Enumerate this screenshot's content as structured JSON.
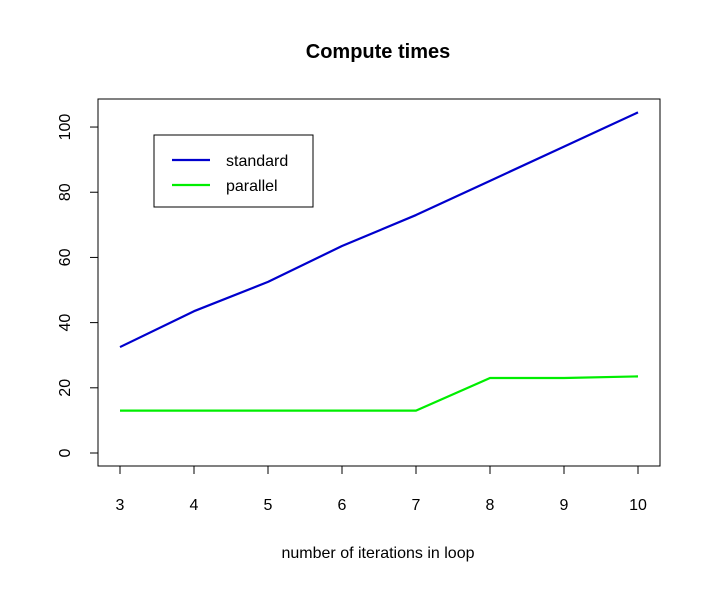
{
  "chart_data": {
    "type": "line",
    "title": "Compute times",
    "xlabel": "number of iterations in loop",
    "ylabel": "",
    "x": [
      3,
      4,
      5,
      6,
      7,
      8,
      9,
      10
    ],
    "xlim": [
      3,
      10
    ],
    "ylim": [
      0,
      104
    ],
    "xticks": [
      "3",
      "4",
      "5",
      "6",
      "7",
      "8",
      "9",
      "10"
    ],
    "yticks": [
      "0",
      "20",
      "40",
      "60",
      "80",
      "100"
    ],
    "grid": false,
    "legend_position": "top-left",
    "series": [
      {
        "name": "standard",
        "color": "#0000cd",
        "values": [
          32.5,
          43.5,
          52.5,
          63.5,
          73,
          83.5,
          94,
          104.5
        ]
      },
      {
        "name": "parallel",
        "color": "#00ee00",
        "values": [
          13,
          13,
          13,
          13,
          13,
          23,
          23,
          23.5
        ]
      }
    ]
  }
}
